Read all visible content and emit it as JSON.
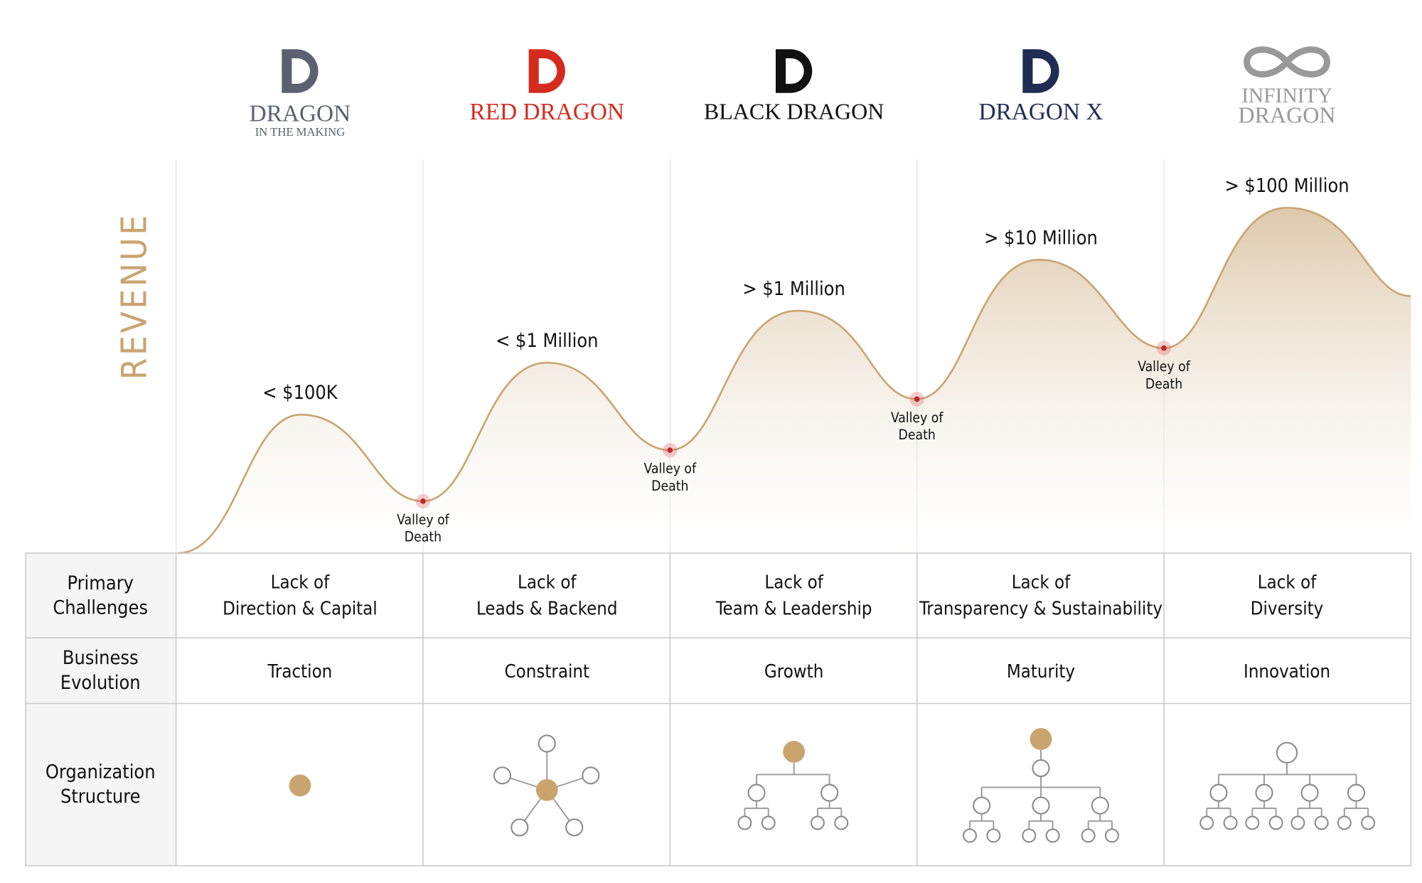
{
  "logos": [
    {
      "name": "DRAGON",
      "sub": "IN THE MAKING"
    },
    {
      "name": "RED DRAGON"
    },
    {
      "name": "BLACK DRAGON"
    },
    {
      "name": "DRAGON X"
    },
    {
      "name": "INFINITY",
      "sub": "DRAGON"
    }
  ],
  "axis_label": "REVENUE",
  "revenue_labels": [
    "< $100K",
    "< $1 Million",
    "> $1 Million",
    "> $10 Million",
    "> $100 Million"
  ],
  "valleys": [
    [
      "Valley of",
      "Death"
    ],
    [
      "Valley of",
      "Death"
    ],
    [
      "Valley of",
      "Death"
    ],
    [
      "Valley of",
      "Death"
    ]
  ],
  "table": {
    "row_headers": [
      [
        "Primary",
        "Challenges"
      ],
      [
        "Business",
        "Evolution"
      ],
      [
        "Organization",
        "Structure"
      ]
    ],
    "challenges": [
      [
        "Lack of",
        "Direction & Capital"
      ],
      [
        "Lack of",
        "Leads & Backend"
      ],
      [
        "Lack of",
        "Team & Leadership"
      ],
      [
        "Lack of",
        "Transparency & Sustainability"
      ],
      [
        "Lack of",
        "Diversity"
      ]
    ],
    "evolution": [
      "Traction",
      "Constraint",
      "Growth",
      "Maturity",
      "Innovation"
    ]
  }
}
